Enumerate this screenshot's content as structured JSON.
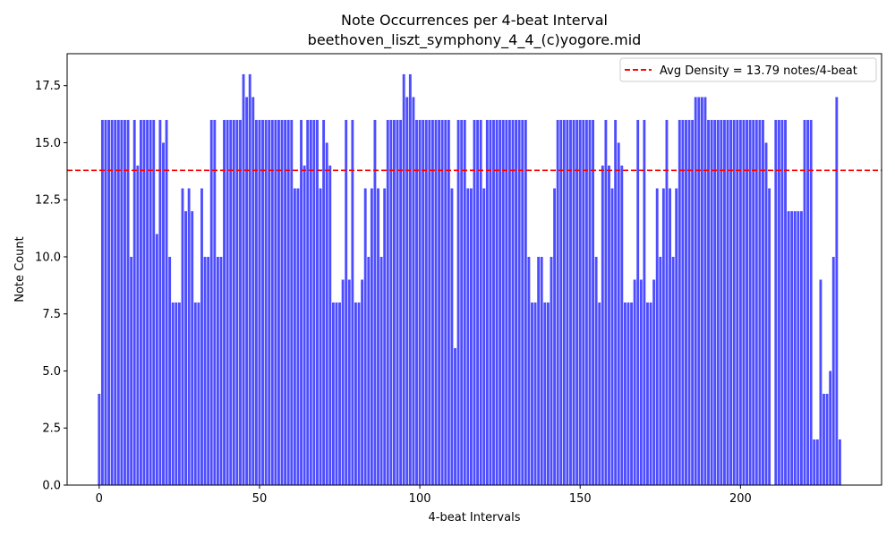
{
  "chart_data": {
    "type": "bar",
    "title": "Note Occurrences per 4-beat Interval",
    "subtitle": "beethoven_liszt_symphony_4_4_(c)yogore.mid",
    "xlabel": "4-beat Intervals",
    "ylabel": "Note Count",
    "xlim": [
      -10,
      244
    ],
    "ylim": [
      0,
      18.9
    ],
    "x_ticks": [
      0,
      50,
      100,
      150,
      200
    ],
    "y_ticks": [
      0.0,
      2.5,
      5.0,
      7.5,
      10.0,
      12.5,
      15.0,
      17.5
    ],
    "y_tick_labels": [
      "0.0",
      "2.5",
      "5.0",
      "7.5",
      "10.0",
      "12.5",
      "15.0",
      "17.5"
    ],
    "bar_color": "#4d4dff",
    "average_line": {
      "value": 13.79,
      "color": "#ff0000",
      "style": "dashed",
      "label": "Avg Density = 13.79 notes/4-beat"
    },
    "legend_position": "top-right",
    "grid": false,
    "values": [
      4,
      16,
      16,
      16,
      16,
      16,
      16,
      16,
      16,
      16,
      10,
      16,
      14,
      16,
      16,
      16,
      16,
      16,
      11,
      16,
      15,
      16,
      10,
      8,
      8,
      8,
      13,
      12,
      13,
      12,
      8,
      8,
      13,
      10,
      10,
      16,
      16,
      10,
      10,
      16,
      16,
      16,
      16,
      16,
      16,
      18,
      17,
      18,
      17,
      16,
      16,
      16,
      16,
      16,
      16,
      16,
      16,
      16,
      16,
      16,
      16,
      13,
      13,
      16,
      14,
      16,
      16,
      16,
      16,
      13,
      16,
      15,
      14,
      8,
      8,
      8,
      9,
      16,
      9,
      16,
      8,
      8,
      9,
      13,
      10,
      13,
      16,
      13,
      10,
      13,
      16,
      16,
      16,
      16,
      16,
      18,
      17,
      18,
      17,
      16,
      16,
      16,
      16,
      16,
      16,
      16,
      16,
      16,
      16,
      16,
      13,
      6,
      16,
      16,
      16,
      13,
      13,
      16,
      16,
      16,
      13,
      16,
      16,
      16,
      16,
      16,
      16,
      16,
      16,
      16,
      16,
      16,
      16,
      16,
      10,
      8,
      8,
      10,
      10,
      8,
      8,
      10,
      13,
      16,
      16,
      16,
      16,
      16,
      16,
      16,
      16,
      16,
      16,
      16,
      16,
      10,
      8,
      14,
      16,
      14,
      13,
      16,
      15,
      14,
      8,
      8,
      8,
      9,
      16,
      9,
      16,
      8,
      8,
      9,
      13,
      10,
      13,
      16,
      13,
      10,
      13,
      16,
      16,
      16,
      16,
      16,
      17,
      17,
      17,
      17,
      16,
      16,
      16,
      16,
      16,
      16,
      16,
      16,
      16,
      16,
      16,
      16,
      16,
      16,
      16,
      16,
      16,
      16,
      15,
      13,
      0,
      16,
      16,
      16,
      16,
      12,
      12,
      12,
      12,
      12,
      16,
      16,
      16,
      2,
      2,
      9,
      4,
      4,
      5,
      10,
      17,
      2
    ]
  }
}
